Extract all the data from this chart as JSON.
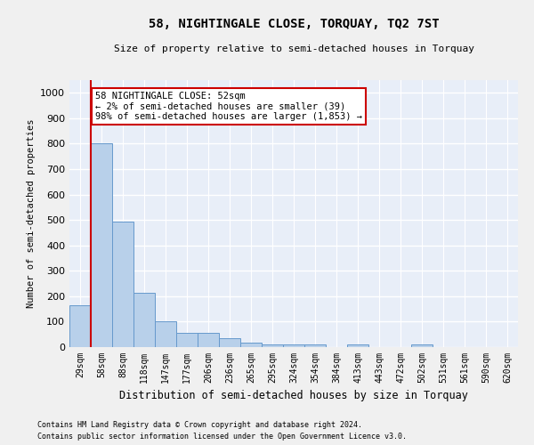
{
  "title": "58, NIGHTINGALE CLOSE, TORQUAY, TQ2 7ST",
  "subtitle": "Size of property relative to semi-detached houses in Torquay",
  "xlabel": "Distribution of semi-detached houses by size in Torquay",
  "ylabel": "Number of semi-detached properties",
  "footnote1": "Contains HM Land Registry data © Crown copyright and database right 2024.",
  "footnote2": "Contains public sector information licensed under the Open Government Licence v3.0.",
  "annotation_title": "58 NIGHTINGALE CLOSE: 52sqm",
  "annotation_line2": "← 2% of semi-detached houses are smaller (39)",
  "annotation_line3": "98% of semi-detached houses are larger (1,853) →",
  "subject_bar_index": 1,
  "categories": [
    "29sqm",
    "58sqm",
    "88sqm",
    "118sqm",
    "147sqm",
    "177sqm",
    "206sqm",
    "236sqm",
    "265sqm",
    "295sqm",
    "324sqm",
    "354sqm",
    "384sqm",
    "413sqm",
    "443sqm",
    "472sqm",
    "502sqm",
    "531sqm",
    "561sqm",
    "590sqm",
    "620sqm"
  ],
  "values": [
    165,
    800,
    495,
    215,
    100,
    55,
    55,
    35,
    17,
    12,
    10,
    10,
    0,
    10,
    0,
    0,
    10,
    0,
    0,
    0,
    0
  ],
  "bar_color": "#b8d0ea",
  "bar_edge_color": "#6699cc",
  "bg_color": "#e8eef8",
  "grid_color": "#ffffff",
  "annotation_box_color": "#ffffff",
  "annotation_box_edge": "#cc0000",
  "subject_line_color": "#cc0000",
  "fig_bg_color": "#f0f0f0",
  "ylim": [
    0,
    1050
  ],
  "yticks": [
    0,
    100,
    200,
    300,
    400,
    500,
    600,
    700,
    800,
    900,
    1000
  ]
}
